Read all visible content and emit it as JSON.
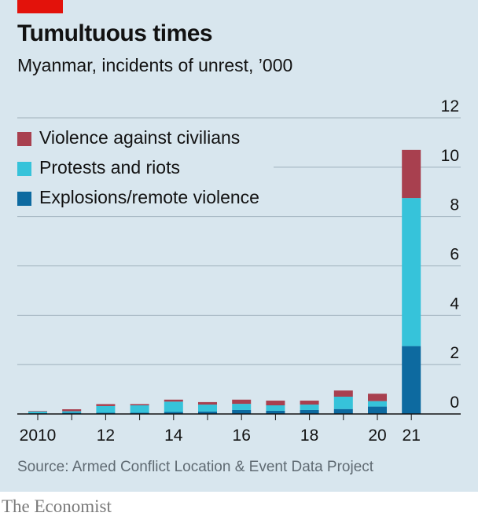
{
  "header": {
    "title": "Tumultuous times",
    "subtitle": "Myanmar, incidents of unrest, ’000"
  },
  "footer": {
    "source": "Source: Armed Conflict Location & Event Data Project",
    "brand": "The Economist"
  },
  "colors": {
    "background": "#d8e6ee",
    "accent": "#e3120b",
    "violence": "#a8404f",
    "protests": "#36c3da",
    "explosions": "#0d6aa0",
    "gridline": "#9fb0bb",
    "axis": "#121212"
  },
  "chart_data": {
    "type": "bar",
    "stacked": true,
    "categories": [
      "2010",
      "2011",
      "2012",
      "2013",
      "2014",
      "2015",
      "2016",
      "2017",
      "2018",
      "2019",
      "2020",
      "2021"
    ],
    "x_tick_labels": [
      "2010",
      "",
      "12",
      "",
      "14",
      "",
      "16",
      "",
      "18",
      "",
      "20",
      "21"
    ],
    "series": [
      {
        "name": "Explosions/remote violence",
        "color": "#0d6aa0",
        "values": [
          0.03,
          0.05,
          0.05,
          0.05,
          0.08,
          0.1,
          0.16,
          0.13,
          0.16,
          0.2,
          0.3,
          2.75
        ]
      },
      {
        "name": "Protests and riots",
        "color": "#36c3da",
        "values": [
          0.07,
          0.06,
          0.27,
          0.3,
          0.42,
          0.28,
          0.25,
          0.22,
          0.22,
          0.5,
          0.22,
          6.0
        ]
      },
      {
        "name": "Violence against civilians",
        "color": "#a8404f",
        "values": [
          0.02,
          0.08,
          0.08,
          0.05,
          0.08,
          0.1,
          0.17,
          0.19,
          0.16,
          0.25,
          0.3,
          1.95
        ]
      }
    ],
    "legend_order": [
      "Violence against civilians",
      "Protests and riots",
      "Explosions/remote violence"
    ],
    "ylim": [
      0,
      12
    ],
    "y_ticks": [
      0,
      2,
      4,
      6,
      8,
      10,
      12
    ],
    "y_axis_side": "right",
    "grid": true,
    "legend": "top-left"
  }
}
